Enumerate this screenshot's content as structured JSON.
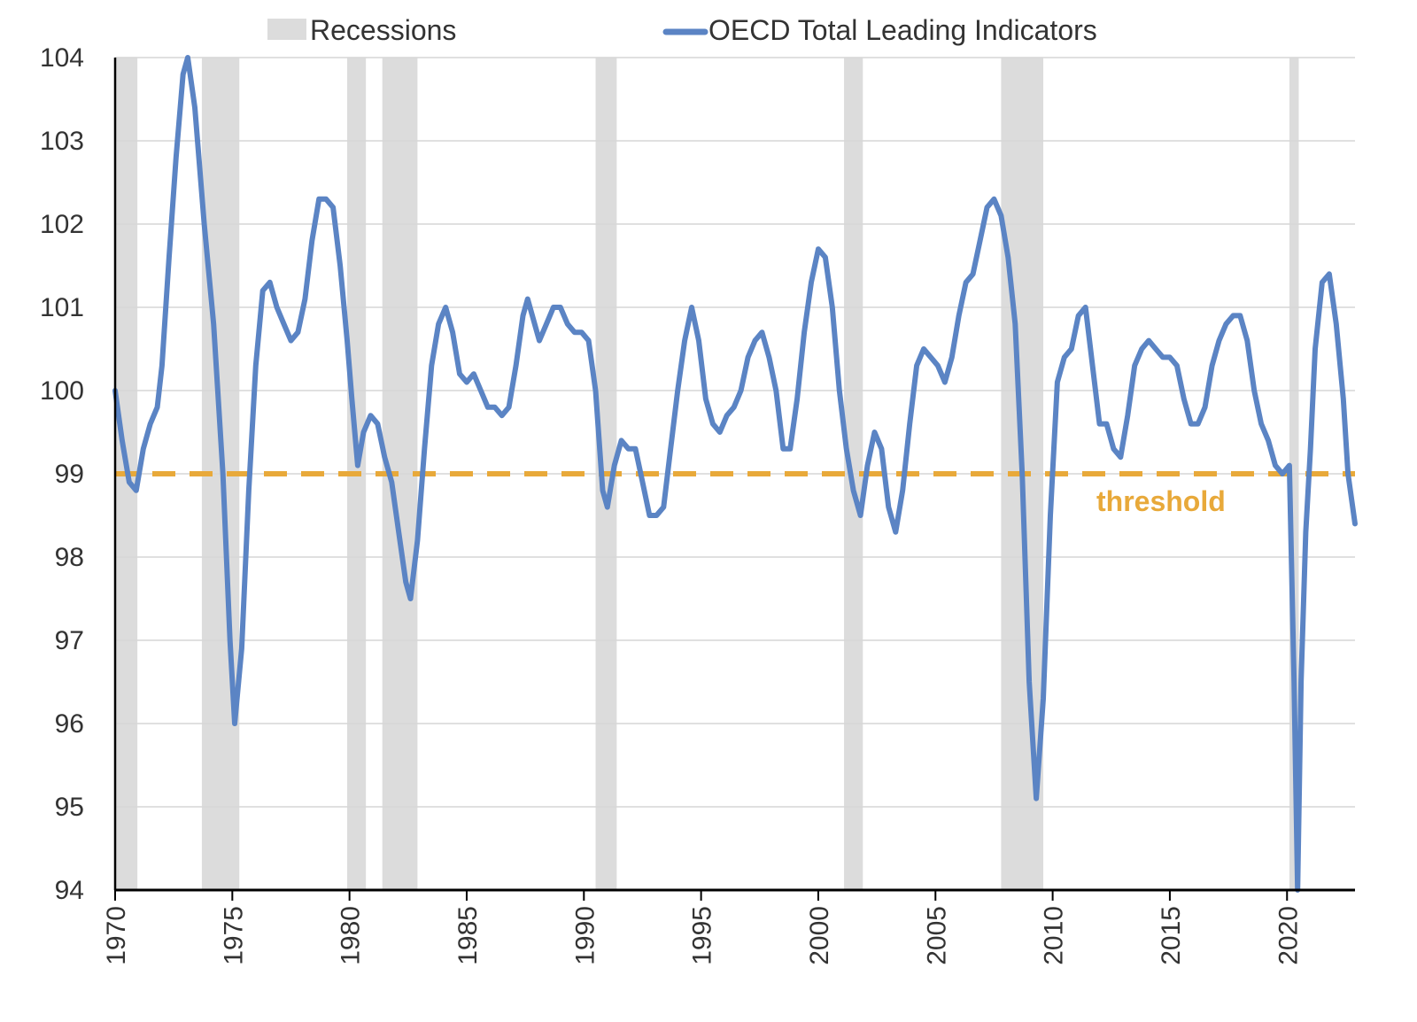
{
  "chart_data": {
    "type": "line",
    "legend": {
      "placement": "top",
      "recessions_label": "Recessions",
      "series_label": "OECD Total Leading Indicators"
    },
    "x_ticks": [
      "1970",
      "1975",
      "1980",
      "1985",
      "1990",
      "1995",
      "2000",
      "2005",
      "2010",
      "2015",
      "2020"
    ],
    "y_ticks": [
      "104",
      "103",
      "102",
      "101",
      "100",
      "99",
      "98",
      "97",
      "96",
      "95",
      "94"
    ],
    "xlim": [
      1970,
      2022.9
    ],
    "ylim": [
      94,
      104
    ],
    "grid": "horizontal",
    "recessions": [
      [
        1970.0,
        1970.95
      ],
      [
        1973.7,
        1975.3
      ],
      [
        1979.9,
        1980.7
      ],
      [
        1981.4,
        1982.9
      ],
      [
        1990.5,
        1991.4
      ],
      [
        2001.1,
        2001.9
      ],
      [
        2007.8,
        2009.6
      ],
      [
        2020.1,
        2020.5
      ]
    ],
    "threshold": {
      "value": 99,
      "label": "threshold",
      "color": "#E8A93A"
    },
    "colors": {
      "series": "#5B84C4",
      "recession": "#DCDCDC",
      "grid": "#D6D6D6",
      "axis": "#000000"
    },
    "series": [
      {
        "name": "OECD Total Leading Indicators",
        "points": [
          [
            1970.0,
            100.0
          ],
          [
            1970.3,
            99.4
          ],
          [
            1970.6,
            98.9
          ],
          [
            1970.9,
            98.8
          ],
          [
            1971.2,
            99.3
          ],
          [
            1971.5,
            99.6
          ],
          [
            1971.8,
            99.8
          ],
          [
            1972.0,
            100.3
          ],
          [
            1972.3,
            101.6
          ],
          [
            1972.6,
            102.8
          ],
          [
            1972.9,
            103.8
          ],
          [
            1973.1,
            104.0
          ],
          [
            1973.4,
            103.4
          ],
          [
            1973.8,
            102.0
          ],
          [
            1974.2,
            100.8
          ],
          [
            1974.6,
            99.0
          ],
          [
            1974.9,
            97.0
          ],
          [
            1975.1,
            96.0
          ],
          [
            1975.4,
            96.9
          ],
          [
            1975.7,
            98.8
          ],
          [
            1976.0,
            100.3
          ],
          [
            1976.3,
            101.2
          ],
          [
            1976.6,
            101.3
          ],
          [
            1976.9,
            101.0
          ],
          [
            1977.2,
            100.8
          ],
          [
            1977.5,
            100.6
          ],
          [
            1977.8,
            100.7
          ],
          [
            1978.1,
            101.1
          ],
          [
            1978.4,
            101.8
          ],
          [
            1978.7,
            102.3
          ],
          [
            1979.0,
            102.3
          ],
          [
            1979.3,
            102.2
          ],
          [
            1979.6,
            101.5
          ],
          [
            1979.9,
            100.6
          ],
          [
            1980.1,
            99.9
          ],
          [
            1980.35,
            99.1
          ],
          [
            1980.6,
            99.5
          ],
          [
            1980.9,
            99.7
          ],
          [
            1981.2,
            99.6
          ],
          [
            1981.5,
            99.2
          ],
          [
            1981.8,
            98.9
          ],
          [
            1982.1,
            98.3
          ],
          [
            1982.4,
            97.7
          ],
          [
            1982.6,
            97.5
          ],
          [
            1982.9,
            98.2
          ],
          [
            1983.2,
            99.3
          ],
          [
            1983.5,
            100.3
          ],
          [
            1983.8,
            100.8
          ],
          [
            1984.1,
            101.0
          ],
          [
            1984.4,
            100.7
          ],
          [
            1984.7,
            100.2
          ],
          [
            1985.0,
            100.1
          ],
          [
            1985.3,
            100.2
          ],
          [
            1985.6,
            100.0
          ],
          [
            1985.9,
            99.8
          ],
          [
            1986.2,
            99.8
          ],
          [
            1986.5,
            99.7
          ],
          [
            1986.8,
            99.8
          ],
          [
            1987.1,
            100.3
          ],
          [
            1987.4,
            100.9
          ],
          [
            1987.6,
            101.1
          ],
          [
            1987.9,
            100.8
          ],
          [
            1988.1,
            100.6
          ],
          [
            1988.4,
            100.8
          ],
          [
            1988.7,
            101.0
          ],
          [
            1989.0,
            101.0
          ],
          [
            1989.3,
            100.8
          ],
          [
            1989.6,
            100.7
          ],
          [
            1989.9,
            100.7
          ],
          [
            1990.2,
            100.6
          ],
          [
            1990.5,
            100.0
          ],
          [
            1990.8,
            98.8
          ],
          [
            1991.0,
            98.6
          ],
          [
            1991.3,
            99.1
          ],
          [
            1991.6,
            99.4
          ],
          [
            1991.9,
            99.3
          ],
          [
            1992.2,
            99.3
          ],
          [
            1992.5,
            98.9
          ],
          [
            1992.8,
            98.5
          ],
          [
            1993.1,
            98.5
          ],
          [
            1993.4,
            98.6
          ],
          [
            1993.7,
            99.3
          ],
          [
            1994.0,
            100.0
          ],
          [
            1994.3,
            100.6
          ],
          [
            1994.6,
            101.0
          ],
          [
            1994.9,
            100.6
          ],
          [
            1995.2,
            99.9
          ],
          [
            1995.5,
            99.6
          ],
          [
            1995.8,
            99.5
          ],
          [
            1996.1,
            99.7
          ],
          [
            1996.4,
            99.8
          ],
          [
            1996.7,
            100.0
          ],
          [
            1997.0,
            100.4
          ],
          [
            1997.3,
            100.6
          ],
          [
            1997.6,
            100.7
          ],
          [
            1997.9,
            100.4
          ],
          [
            1998.2,
            100.0
          ],
          [
            1998.5,
            99.3
          ],
          [
            1998.8,
            99.3
          ],
          [
            1999.1,
            99.9
          ],
          [
            1999.4,
            100.7
          ],
          [
            1999.7,
            101.3
          ],
          [
            2000.0,
            101.7
          ],
          [
            2000.3,
            101.6
          ],
          [
            2000.6,
            101.0
          ],
          [
            2000.9,
            100.0
          ],
          [
            2001.2,
            99.3
          ],
          [
            2001.5,
            98.8
          ],
          [
            2001.8,
            98.5
          ],
          [
            2002.1,
            99.1
          ],
          [
            2002.4,
            99.5
          ],
          [
            2002.7,
            99.3
          ],
          [
            2003.0,
            98.6
          ],
          [
            2003.3,
            98.3
          ],
          [
            2003.6,
            98.8
          ],
          [
            2003.9,
            99.6
          ],
          [
            2004.2,
            100.3
          ],
          [
            2004.5,
            100.5
          ],
          [
            2004.8,
            100.4
          ],
          [
            2005.1,
            100.3
          ],
          [
            2005.4,
            100.1
          ],
          [
            2005.7,
            100.4
          ],
          [
            2006.0,
            100.9
          ],
          [
            2006.3,
            101.3
          ],
          [
            2006.6,
            101.4
          ],
          [
            2006.9,
            101.8
          ],
          [
            2007.2,
            102.2
          ],
          [
            2007.5,
            102.3
          ],
          [
            2007.8,
            102.1
          ],
          [
            2008.1,
            101.6
          ],
          [
            2008.4,
            100.8
          ],
          [
            2008.7,
            99.0
          ],
          [
            2009.0,
            96.5
          ],
          [
            2009.3,
            95.1
          ],
          [
            2009.6,
            96.3
          ],
          [
            2009.9,
            98.5
          ],
          [
            2010.2,
            100.1
          ],
          [
            2010.5,
            100.4
          ],
          [
            2010.8,
            100.5
          ],
          [
            2011.1,
            100.9
          ],
          [
            2011.4,
            101.0
          ],
          [
            2011.7,
            100.3
          ],
          [
            2012.0,
            99.6
          ],
          [
            2012.3,
            99.6
          ],
          [
            2012.6,
            99.3
          ],
          [
            2012.9,
            99.2
          ],
          [
            2013.2,
            99.7
          ],
          [
            2013.5,
            100.3
          ],
          [
            2013.8,
            100.5
          ],
          [
            2014.1,
            100.6
          ],
          [
            2014.4,
            100.5
          ],
          [
            2014.7,
            100.4
          ],
          [
            2015.0,
            100.4
          ],
          [
            2015.3,
            100.3
          ],
          [
            2015.6,
            99.9
          ],
          [
            2015.9,
            99.6
          ],
          [
            2016.2,
            99.6
          ],
          [
            2016.5,
            99.8
          ],
          [
            2016.8,
            100.3
          ],
          [
            2017.1,
            100.6
          ],
          [
            2017.4,
            100.8
          ],
          [
            2017.7,
            100.9
          ],
          [
            2018.0,
            100.9
          ],
          [
            2018.3,
            100.6
          ],
          [
            2018.6,
            100.0
          ],
          [
            2018.9,
            99.6
          ],
          [
            2019.2,
            99.4
          ],
          [
            2019.5,
            99.1
          ],
          [
            2019.8,
            99.0
          ],
          [
            2020.1,
            99.1
          ],
          [
            2020.3,
            96.5
          ],
          [
            2020.45,
            94.0
          ],
          [
            2020.6,
            96.5
          ],
          [
            2020.8,
            98.3
          ],
          [
            2021.0,
            99.3
          ],
          [
            2021.2,
            100.5
          ],
          [
            2021.5,
            101.3
          ],
          [
            2021.8,
            101.4
          ],
          [
            2022.1,
            100.8
          ],
          [
            2022.4,
            99.9
          ],
          [
            2022.6,
            99.0
          ],
          [
            2022.9,
            98.4
          ]
        ]
      }
    ]
  }
}
